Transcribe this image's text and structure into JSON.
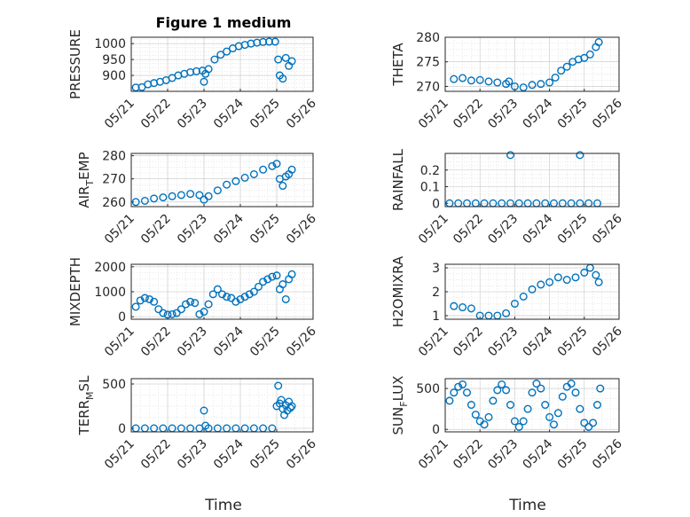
{
  "figure": {
    "title": "Figure 1 medium",
    "xlabel": "Time",
    "marker_color": "#0072BD"
  },
  "x_ticks": [
    "05/21",
    "05/22",
    "05/23",
    "05/24",
    "05/25",
    "05/26"
  ],
  "chart_data": [
    {
      "type": "scatter",
      "ylabel": "PRESSURE",
      "ylim": [
        850,
        1020
      ],
      "yticks": [
        {
          "v": 900,
          "label": "900"
        },
        {
          "v": 950,
          "label": "950"
        },
        {
          "v": 1000,
          "label": "1000"
        }
      ],
      "xlim": [
        "05/21",
        "05/26"
      ],
      "grid": true,
      "x": [
        "05/21 03:00",
        "05/21 07:00",
        "05/21 11:00",
        "05/21 15:00",
        "05/21 19:00",
        "05/21 23:00",
        "05/22 03:00",
        "05/22 07:00",
        "05/22 11:00",
        "05/22 15:00",
        "05/22 19:00",
        "05/22 23:00",
        "05/23 00:00",
        "05/23 01:00",
        "05/23 03:00",
        "05/23 07:00",
        "05/23 11:00",
        "05/23 15:00",
        "05/23 19:00",
        "05/23 23:00",
        "05/24 03:00",
        "05/24 07:00",
        "05/24 11:00",
        "05/24 15:00",
        "05/24 19:00",
        "05/24 23:00",
        "05/25 01:00",
        "05/25 02:00",
        "05/25 04:00",
        "05/25 06:00",
        "05/25 08:00",
        "05/25 10:00"
      ],
      "y": [
        862,
        863,
        872,
        876,
        880,
        885,
        892,
        900,
        905,
        910,
        913,
        915,
        880,
        905,
        920,
        950,
        965,
        975,
        985,
        992,
        996,
        1000,
        1003,
        1005,
        1006,
        1006,
        950,
        900,
        890,
        955,
        930,
        945
      ]
    },
    {
      "type": "scatter",
      "ylabel": "THETA",
      "ylim": [
        269,
        280
      ],
      "yticks": [
        {
          "v": 270,
          "label": "270"
        },
        {
          "v": 275,
          "label": "275"
        },
        {
          "v": 280,
          "label": "280"
        }
      ],
      "xlim": [
        "05/21",
        "05/26"
      ],
      "grid": true,
      "x": [
        "05/21 06:00",
        "05/21 12:00",
        "05/21 18:00",
        "05/22 00:00",
        "05/22 06:00",
        "05/22 12:00",
        "05/22 18:00",
        "05/22 20:00",
        "05/23 00:00",
        "05/23 06:00",
        "05/23 12:00",
        "05/23 18:00",
        "05/24 00:00",
        "05/24 04:00",
        "05/24 08:00",
        "05/24 12:00",
        "05/24 16:00",
        "05/24 20:00",
        "05/25 00:00",
        "05/25 04:00",
        "05/25 08:00",
        "05/25 10:00"
      ],
      "y": [
        271.5,
        271.7,
        271.2,
        271.3,
        271.0,
        270.8,
        270.5,
        271.0,
        270.0,
        269.8,
        270.3,
        270.5,
        270.8,
        271.8,
        273.2,
        274.0,
        275.0,
        275.5,
        275.8,
        276.5,
        278.0,
        279.0
      ]
    },
    {
      "type": "scatter",
      "ylabel": "AIR_TEMP",
      "ylim": [
        258,
        281
      ],
      "yticks": [
        {
          "v": 260,
          "label": "260"
        },
        {
          "v": 270,
          "label": "270"
        },
        {
          "v": 280,
          "label": "280"
        }
      ],
      "xlim": [
        "05/21",
        "05/26"
      ],
      "grid": true,
      "x": [
        "05/21 03:00",
        "05/21 09:00",
        "05/21 15:00",
        "05/21 21:00",
        "05/22 03:00",
        "05/22 09:00",
        "05/22 15:00",
        "05/22 21:00",
        "05/23 00:00",
        "05/23 03:00",
        "05/23 09:00",
        "05/23 15:00",
        "05/23 21:00",
        "05/24 03:00",
        "05/24 09:00",
        "05/24 15:00",
        "05/24 21:00",
        "05/25 00:00",
        "05/25 02:00",
        "05/25 04:00",
        "05/25 06:00",
        "05/25 08:00",
        "05/25 10:00"
      ],
      "y": [
        260,
        260.5,
        261.5,
        262,
        262.5,
        263,
        263.5,
        263,
        261,
        262.5,
        265,
        267.5,
        269,
        270.5,
        272,
        274,
        275.5,
        276.5,
        270,
        267,
        271,
        272,
        274
      ]
    },
    {
      "type": "scatter",
      "ylabel": "RAINFALL",
      "ylim": [
        -0.02,
        0.3
      ],
      "yticks": [
        {
          "v": 0,
          "label": "0"
        },
        {
          "v": 0.1,
          "label": "0.1"
        },
        {
          "v": 0.2,
          "label": "0.2"
        }
      ],
      "xlim": [
        "05/21",
        "05/26"
      ],
      "grid": true,
      "x": [
        "05/21 03:00",
        "05/21 09:00",
        "05/21 15:00",
        "05/21 21:00",
        "05/22 03:00",
        "05/22 09:00",
        "05/22 15:00",
        "05/22 21:00",
        "05/23 03:00",
        "05/23 09:00",
        "05/23 15:00",
        "05/23 21:00",
        "05/24 03:00",
        "05/24 09:00",
        "05/24 15:00",
        "05/24 21:00",
        "05/25 03:00",
        "05/25 09:00",
        "05/22 21:00",
        "05/24 21:00"
      ],
      "y": [
        0,
        0,
        0,
        0,
        0,
        0,
        0,
        0,
        0,
        0,
        0,
        0,
        0,
        0,
        0,
        0,
        0,
        0,
        0.29,
        0.29
      ]
    },
    {
      "type": "scatter",
      "ylabel": "MIXDEPTH",
      "ylim": [
        -100,
        2100
      ],
      "yticks": [
        {
          "v": 0,
          "label": "0"
        },
        {
          "v": 1000,
          "label": "1000"
        },
        {
          "v": 2000,
          "label": "2000"
        }
      ],
      "xlim": [
        "05/21",
        "05/26"
      ],
      "grid": true,
      "x": [
        "05/21 03:00",
        "05/21 06:00",
        "05/21 09:00",
        "05/21 12:00",
        "05/21 15:00",
        "05/21 18:00",
        "05/21 21:00",
        "05/22 00:00",
        "05/22 03:00",
        "05/22 06:00",
        "05/22 09:00",
        "05/22 12:00",
        "05/22 15:00",
        "05/22 18:00",
        "05/22 21:00",
        "05/23 00:00",
        "05/23 03:00",
        "05/23 06:00",
        "05/23 09:00",
        "05/23 12:00",
        "05/23 15:00",
        "05/23 18:00",
        "05/23 21:00",
        "05/24 00:00",
        "05/24 03:00",
        "05/24 06:00",
        "05/24 09:00",
        "05/24 12:00",
        "05/24 15:00",
        "05/24 18:00",
        "05/24 21:00",
        "05/25 00:00",
        "05/25 02:00",
        "05/25 04:00",
        "05/25 06:00",
        "05/25 08:00",
        "05/25 10:00"
      ],
      "y": [
        400,
        650,
        750,
        700,
        600,
        300,
        150,
        80,
        100,
        150,
        300,
        500,
        600,
        550,
        100,
        200,
        500,
        900,
        1100,
        900,
        800,
        750,
        600,
        700,
        800,
        900,
        1000,
        1200,
        1400,
        1500,
        1600,
        1650,
        1100,
        1300,
        700,
        1500,
        1700
      ]
    },
    {
      "type": "scatter",
      "ylabel": "H2OMIXRA",
      "ylim": [
        0.85,
        3.15
      ],
      "yticks": [
        {
          "v": 1,
          "label": "1"
        },
        {
          "v": 2,
          "label": "2"
        },
        {
          "v": 3,
          "label": "3"
        }
      ],
      "xlim": [
        "05/21",
        "05/26"
      ],
      "grid": true,
      "x": [
        "05/21 06:00",
        "05/21 12:00",
        "05/21 18:00",
        "05/22 00:00",
        "05/22 06:00",
        "05/22 12:00",
        "05/22 18:00",
        "05/23 00:00",
        "05/23 06:00",
        "05/23 12:00",
        "05/23 18:00",
        "05/24 00:00",
        "05/24 06:00",
        "05/24 12:00",
        "05/24 18:00",
        "05/25 00:00",
        "05/25 04:00",
        "05/25 08:00",
        "05/25 10:00"
      ],
      "y": [
        1.4,
        1.35,
        1.3,
        1.0,
        1.0,
        1.0,
        1.1,
        1.5,
        1.8,
        2.1,
        2.3,
        2.4,
        2.6,
        2.5,
        2.6,
        2.8,
        3.0,
        2.7,
        2.4
      ]
    },
    {
      "type": "scatter",
      "ylabel": "TERR_MSL",
      "ylim": [
        -40,
        560
      ],
      "yticks": [
        {
          "v": 0,
          "label": "0"
        },
        {
          "v": 500,
          "label": "500"
        }
      ],
      "xlim": [
        "05/21",
        "05/26"
      ],
      "grid": true,
      "x": [
        "05/21 03:00",
        "05/21 09:00",
        "05/21 15:00",
        "05/21 21:00",
        "05/22 03:00",
        "05/22 09:00",
        "05/22 15:00",
        "05/22 21:00",
        "05/23 00:00",
        "05/23 01:00",
        "05/23 03:00",
        "05/23 09:00",
        "05/23 15:00",
        "05/23 21:00",
        "05/24 03:00",
        "05/24 09:00",
        "05/24 15:00",
        "05/24 21:00",
        "05/25 00:00",
        "05/25 01:00",
        "05/25 02:00",
        "05/25 03:00",
        "05/25 04:00",
        "05/25 05:00",
        "05/25 06:00",
        "05/25 07:00",
        "05/25 08:00",
        "05/25 09:00",
        "05/25 10:00"
      ],
      "y": [
        0,
        0,
        0,
        0,
        0,
        0,
        0,
        0,
        200,
        30,
        0,
        0,
        0,
        0,
        0,
        0,
        0,
        0,
        250,
        480,
        280,
        320,
        220,
        150,
        260,
        200,
        300,
        230,
        250
      ]
    },
    {
      "type": "scatter",
      "ylabel": "SUN_FLUX",
      "ylim": [
        -30,
        620
      ],
      "yticks": [
        {
          "v": 0,
          "label": "0"
        },
        {
          "v": 500,
          "label": "500"
        }
      ],
      "xlim": [
        "05/21",
        "05/26"
      ],
      "grid": true,
      "x": [
        "05/21 03:00",
        "05/21 06:00",
        "05/21 09:00",
        "05/21 12:00",
        "05/21 15:00",
        "05/21 18:00",
        "05/21 21:00",
        "05/22 00:00",
        "05/22 03:00",
        "05/22 06:00",
        "05/22 09:00",
        "05/22 12:00",
        "05/22 15:00",
        "05/22 18:00",
        "05/22 21:00",
        "05/23 00:00",
        "05/23 03:00",
        "05/23 06:00",
        "05/23 09:00",
        "05/23 12:00",
        "05/23 15:00",
        "05/23 18:00",
        "05/23 21:00",
        "05/24 00:00",
        "05/24 03:00",
        "05/24 06:00",
        "05/24 09:00",
        "05/24 12:00",
        "05/24 15:00",
        "05/24 18:00",
        "05/24 21:00",
        "05/25 00:00",
        "05/25 03:00",
        "05/25 06:00",
        "05/25 09:00",
        "05/25 11:00"
      ],
      "y": [
        350,
        450,
        520,
        550,
        450,
        300,
        180,
        100,
        60,
        150,
        350,
        480,
        550,
        480,
        300,
        100,
        30,
        100,
        250,
        450,
        560,
        500,
        300,
        150,
        60,
        200,
        400,
        520,
        560,
        450,
        250,
        80,
        30,
        80,
        300,
        500
      ]
    }
  ]
}
